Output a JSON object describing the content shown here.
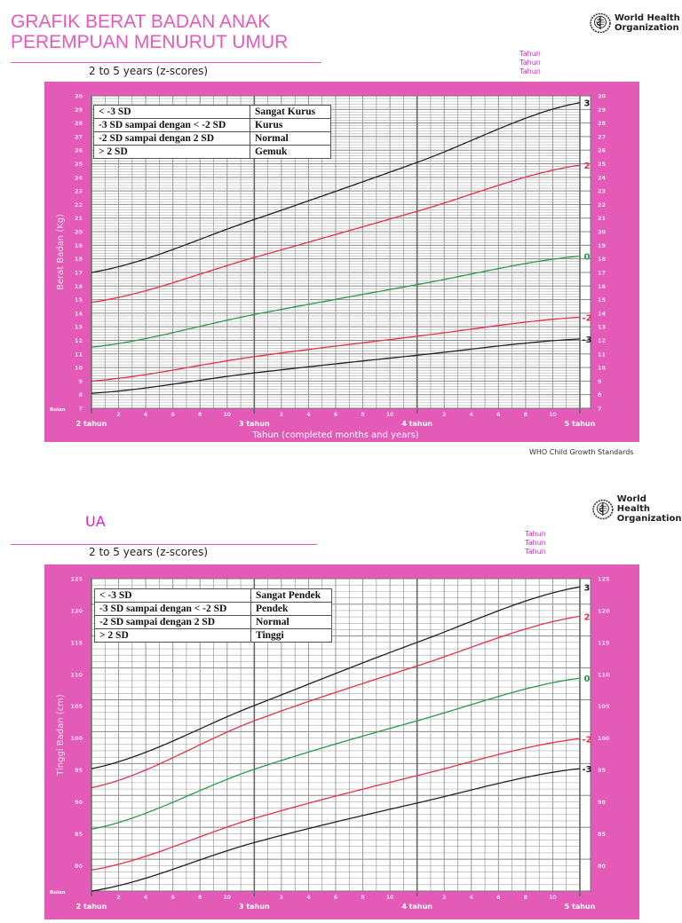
{
  "chart_data": [
    {
      "type": "line",
      "title": "GRAFIK BERAT BADAN ANAK PEREMPUAN MENURUT UMUR",
      "subtitle": "2 to 5 years (z-scores)",
      "xlabel": "Tahun (completed months and years)",
      "ylabel": "Berat Badan (Kg)",
      "ylim": [
        7,
        30
      ],
      "xlim_months": [
        24,
        60
      ],
      "x_major_labels": [
        "2 tahun",
        "3 tahun",
        "4 tahun",
        "5 tahun"
      ],
      "x_minor_labels": [
        "2",
        "4",
        "6",
        "8",
        "10"
      ],
      "x_unit_label": "Bulan",
      "y_ticks": [
        7,
        8,
        9,
        10,
        11,
        12,
        13,
        14,
        15,
        16,
        17,
        18,
        19,
        20,
        21,
        22,
        23,
        24,
        25,
        26,
        27,
        28,
        29,
        30
      ],
      "grid": true,
      "x_months": [
        24,
        36,
        48,
        60
      ],
      "series": [
        {
          "name": "3",
          "color": "#222222",
          "values": [
            17.0,
            20.9,
            25.1,
            29.5
          ]
        },
        {
          "name": "2",
          "color": "#e8304a",
          "values": [
            14.8,
            18.1,
            21.5,
            24.9
          ]
        },
        {
          "name": "0",
          "color": "#2a9a4a",
          "values": [
            11.5,
            13.9,
            16.1,
            18.2
          ]
        },
        {
          "name": "-2",
          "color": "#e8304a",
          "values": [
            9.0,
            10.8,
            12.3,
            13.7
          ]
        },
        {
          "name": "-3",
          "color": "#222222",
          "values": [
            8.1,
            9.6,
            10.9,
            12.1
          ]
        }
      ],
      "legend_table": [
        {
          "range": "< -3 SD",
          "category": "Sangat Kurus"
        },
        {
          "range": "-3 SD sampai dengan < -2 SD",
          "category": "Kurus"
        },
        {
          "range": "-2 SD sampai dengan 2 SD",
          "category": "Normal"
        },
        {
          "range": "> 2 SD",
          "category": "Gemuk"
        }
      ]
    },
    {
      "type": "line",
      "title": "UA",
      "subtitle": "2 to 5 years (z-scores)",
      "xlabel": "",
      "ylabel": "Tinggi Badan  (cm)",
      "ylim": [
        76,
        125
      ],
      "xlim_months": [
        24,
        60
      ],
      "x_major_labels": [
        "2 tahun",
        "3 tahun",
        "4 tahun",
        "5 tahun"
      ],
      "x_minor_labels": [
        "2",
        "4",
        "6",
        "8",
        "10"
      ],
      "x_unit_label": "Bulan",
      "y_ticks": [
        80,
        85,
        90,
        95,
        100,
        105,
        110,
        115,
        120,
        125
      ],
      "grid": true,
      "x_months": [
        24,
        36,
        48,
        60
      ],
      "series": [
        {
          "name": "3",
          "color": "#222222",
          "values": [
            95.2,
            105.1,
            115.0,
            123.7
          ]
        },
        {
          "name": "2",
          "color": "#e8304a",
          "values": [
            92.2,
            102.7,
            111.3,
            119.1
          ]
        },
        {
          "name": "0",
          "color": "#2a9a4a",
          "values": [
            85.7,
            95.1,
            102.7,
            109.4
          ]
        },
        {
          "name": "-2",
          "color": "#e8304a",
          "values": [
            79.3,
            87.4,
            94.1,
            99.9
          ]
        },
        {
          "name": "-3",
          "color": "#222222",
          "values": [
            76.0,
            83.6,
            89.8,
            95.2
          ]
        }
      ],
      "legend_table": [
        {
          "range": "< -3 SD",
          "category": "Sangat Pendek"
        },
        {
          "range": "-3 SD sampai dengan < -2 SD",
          "category": "Pendek"
        },
        {
          "range": "-2 SD sampai dengan 2 SD",
          "category": "Normal"
        },
        {
          "range": "> 2 SD",
          "category": "Tinggi"
        }
      ]
    }
  ],
  "page1": {
    "title_line1": "GRAFIK BERAT BADAN ANAK",
    "title_line2": "PEREMPUAN MENURUT UMUR",
    "subtitle": "2 to 5 years (z-scores)",
    "who_line1": "World Health",
    "who_line2": "Organization",
    "tahun": [
      "Tahun",
      "Tahun",
      "Tahun"
    ],
    "footer": "WHO Child Growth Standards"
  },
  "page2": {
    "title": "UA",
    "subtitle": "2 to 5 years (z-scores)",
    "who_line1": "World Health",
    "who_line2": "Organization",
    "tahun": [
      "Tahun",
      "Tahun",
      "Tahun"
    ]
  },
  "colors": {
    "panel": "#e35bb6",
    "title": "#e35bb6",
    "ua_title": "#e020d0",
    "sd_black": "#222222",
    "sd_red": "#e8304a",
    "sd_green": "#2a9a4a"
  }
}
